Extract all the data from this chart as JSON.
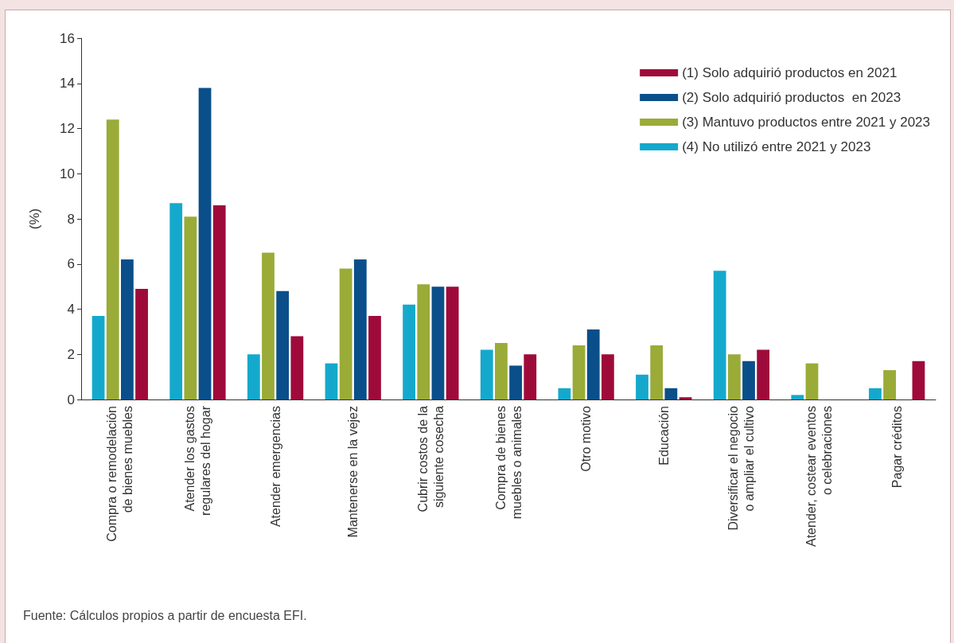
{
  "chart_data": {
    "type": "bar",
    "ylabel": "(%)",
    "categories": [
      "Compra o remodelación\nde bienes muebles",
      "Atender los gastos\nregulares del hogar",
      "Atender emergencias",
      "Mantenerse en la vejez",
      "Cubrir costos de la\nsiguiente cosecha",
      "Compra de bienes\nmuebles o animales",
      "Otro motivo",
      "Educación",
      "Diversificar el negocio\no ampliar el cultivo",
      "Atender, costear eventos\no celebraciones",
      "Pagar créditos"
    ],
    "series": [
      {
        "name": "(1) Solo adquirió productos en 2021",
        "color": "#9e0b3a",
        "values": [
          4.9,
          8.6,
          2.8,
          3.7,
          5.0,
          2.0,
          2.0,
          0.1,
          2.2,
          null,
          1.7
        ]
      },
      {
        "name": "(2) Solo adquirió productos  en 2023",
        "color": "#0a4f8a",
        "values": [
          6.2,
          13.8,
          4.8,
          6.2,
          5.0,
          1.5,
          3.1,
          0.5,
          1.7,
          null,
          null
        ]
      },
      {
        "name": "(3) Mantuvo productos entre 2021 y 2023",
        "color": "#9aab38",
        "values": [
          12.4,
          8.1,
          6.5,
          5.8,
          5.1,
          2.5,
          2.4,
          2.4,
          2.0,
          1.6,
          1.3
        ]
      },
      {
        "name": "(4) No utilizó entre 2021 y 2023",
        "color": "#14a9cc",
        "values": [
          3.7,
          8.7,
          2.0,
          1.6,
          4.2,
          2.2,
          0.5,
          1.1,
          5.7,
          0.2,
          0.5
        ]
      }
    ],
    "ylim": [
      0,
      16
    ],
    "yticks": [
      0,
      2,
      4,
      6,
      8,
      10,
      12,
      14,
      16
    ],
    "grid": false,
    "legend": "top right",
    "annotations": [
      "Fuente: Cálculos propios a partir de encuesta EFI."
    ]
  }
}
